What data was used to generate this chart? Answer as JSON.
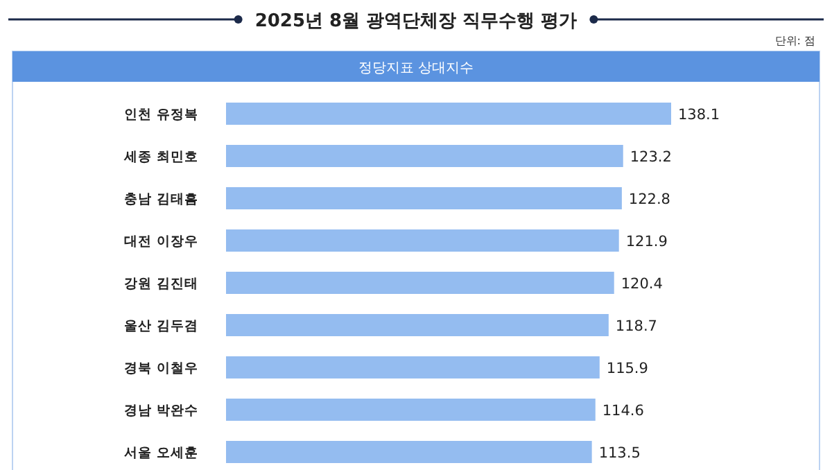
{
  "chart_data": {
    "type": "bar",
    "orientation": "horizontal",
    "title": "2025년 8월 광역단체장 직무수행 평가",
    "subtitle": "정당지표 상대지수",
    "annotations": [
      "단위: 점"
    ],
    "categories": [
      "인천 유정복",
      "세종 최민호",
      "충남 김태흠",
      "대전 이장우",
      "강원 김진태",
      "울산 김두겸",
      "경북 이철우",
      "경남 박완수",
      "서울 오세훈"
    ],
    "values": [
      138.1,
      123.2,
      122.8,
      121.9,
      120.4,
      118.7,
      115.9,
      114.6,
      113.5
    ],
    "color": "#94bcf0",
    "data_labels": true
  }
}
